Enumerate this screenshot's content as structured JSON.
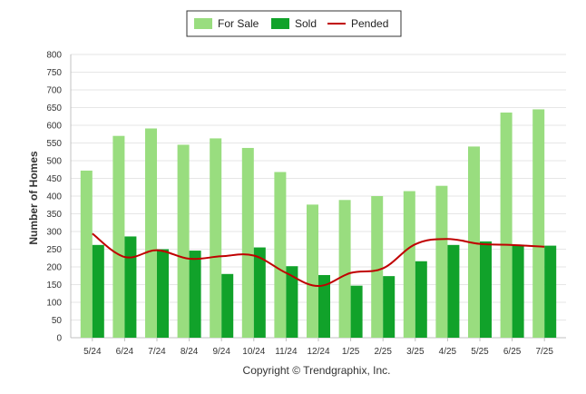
{
  "chart_data": {
    "type": "bar",
    "categories": [
      "5/24",
      "6/24",
      "7/24",
      "8/24",
      "9/24",
      "10/24",
      "11/24",
      "12/24",
      "1/25",
      "2/25",
      "3/25",
      "4/25",
      "5/25",
      "6/25",
      "7/25"
    ],
    "series": [
      {
        "name": "For Sale",
        "kind": "bar",
        "color": "#99dd7f",
        "values": [
          472,
          570,
          591,
          545,
          563,
          536,
          468,
          376,
          389,
          400,
          414,
          429,
          540,
          636,
          645
        ]
      },
      {
        "name": "Sold",
        "kind": "bar",
        "color": "#11a22a",
        "values": [
          262,
          286,
          250,
          246,
          180,
          255,
          202,
          177,
          147,
          174,
          216,
          262,
          272,
          263,
          260
        ]
      },
      {
        "name": "Pended",
        "kind": "line",
        "color": "#c00000",
        "values": [
          294,
          228,
          247,
          223,
          230,
          232,
          183,
          146,
          183,
          196,
          264,
          279,
          265,
          262,
          257
        ]
      }
    ],
    "ylabel": "Number of Homes",
    "xlabel": "",
    "ylim": [
      0,
      800
    ],
    "yticks": [
      0,
      50,
      100,
      150,
      200,
      250,
      300,
      350,
      400,
      450,
      500,
      550,
      600,
      650,
      700,
      750,
      800
    ],
    "grid": true,
    "legend_position": "top-center"
  },
  "footer": {
    "copyright": "Copyright © Trendgraphix, Inc."
  }
}
